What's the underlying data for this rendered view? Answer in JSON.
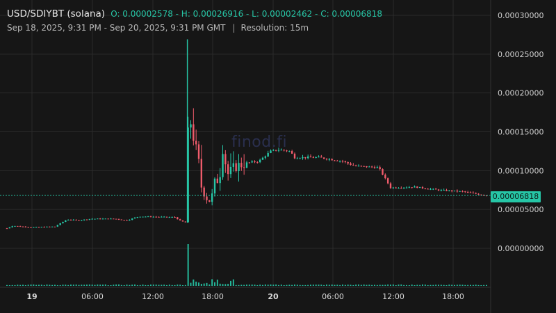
{
  "header": {
    "symbol": "USD/SDIYBT (solana)",
    "ohlc": "O: 0.00002578 - H: 0.00026916 - L: 0.00002462 - C: 0.00006818",
    "range": "Sep 18, 2025, 9:31 PM - Sep 20, 2025, 9:31 PM GMT",
    "separator": "|",
    "resolution": "Resolution: 15m"
  },
  "watermark": "finod.fi",
  "colors": {
    "up": "#26c6a6",
    "down": "#ef5b6b",
    "grid": "#2b2b2b",
    "background": "#161616"
  },
  "chart_data": {
    "type": "candlestick",
    "y_ticks": [
      "0.00030000",
      "0.00025000",
      "0.00020000",
      "0.00015000",
      "0.00010000",
      "0.00005000",
      "0.00000000"
    ],
    "x_ticks": [
      "19",
      "06:00",
      "12:00",
      "18:00",
      "20",
      "06:00",
      "12:00",
      "18:00"
    ],
    "ylim": [
      0,
      0.0003
    ],
    "last_price": "0.00006818",
    "series": [
      {
        "t": 0,
        "v": 2.58e-05
      },
      {
        "t": 0.5,
        "v": 2.9e-05
      },
      {
        "t": 2,
        "v": 2.7e-05
      },
      {
        "t": 4,
        "v": 2.8e-05
      },
      {
        "t": 5,
        "v": 3.7e-05
      },
      {
        "t": 6,
        "v": 3.6e-05
      },
      {
        "t": 7,
        "v": 3.8e-05
      },
      {
        "t": 9,
        "v": 3.8e-05
      },
      {
        "t": 10,
        "v": 3.6e-05
      },
      {
        "t": 11,
        "v": 4.1e-05
      },
      {
        "t": 14,
        "v": 4e-05
      },
      {
        "t": 14.5,
        "v": 3.5e-05
      },
      {
        "t": 15,
        "v": 3.3e-05
      },
      {
        "t": 15.1,
        "v": 0.000145
      },
      {
        "t": 15.3,
        "v": 0.000165
      },
      {
        "t": 15.6,
        "v": 0.00014
      },
      {
        "t": 16,
        "v": 0.00011
      },
      {
        "t": 16.2,
        "v": 8e-05
      },
      {
        "t": 16.6,
        "v": 6.5e-05
      },
      {
        "t": 17,
        "v": 6e-05
      },
      {
        "t": 17.4,
        "v": 9e-05
      },
      {
        "t": 17.7,
        "v": 8.5e-05
      },
      {
        "t": 18,
        "v": 0.00013
      },
      {
        "t": 18.4,
        "v": 9.5e-05
      },
      {
        "t": 19,
        "v": 0.000105
      },
      {
        "t": 20,
        "v": 0.00011
      },
      {
        "t": 21,
        "v": 0.000112
      },
      {
        "t": 22,
        "v": 0.000125
      },
      {
        "t": 22.7,
        "v": 0.000127
      },
      {
        "t": 23.6,
        "v": 0.000125
      },
      {
        "t": 24,
        "v": 0.000117
      },
      {
        "t": 26,
        "v": 0.000117
      },
      {
        "t": 28,
        "v": 0.000112
      },
      {
        "t": 29,
        "v": 0.000106
      },
      {
        "t": 31,
        "v": 0.000104
      },
      {
        "t": 32,
        "v": 7.8e-05
      },
      {
        "t": 34,
        "v": 7.9e-05
      },
      {
        "t": 36,
        "v": 7.5e-05
      },
      {
        "t": 38,
        "v": 7.3e-05
      },
      {
        "t": 40,
        "v": 6.8e-05
      }
    ]
  }
}
